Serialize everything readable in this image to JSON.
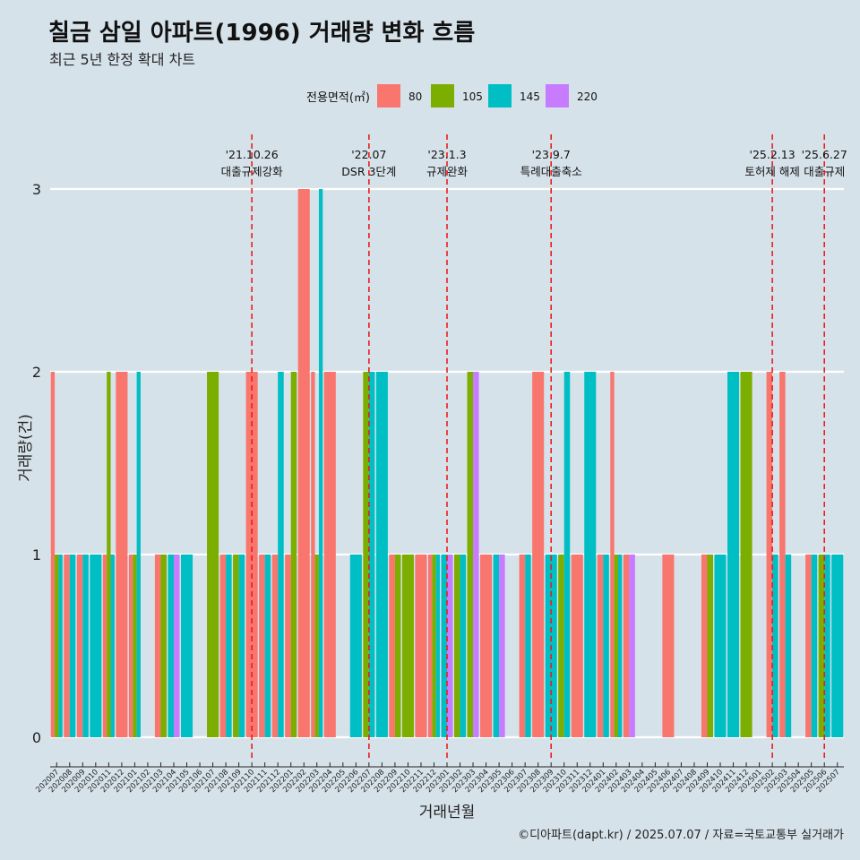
{
  "title": "칠금 삼일 아파트(1996) 거래량 변화 흐름",
  "subtitle": "최근 5년 한정 확대 차트",
  "caption": "©디아파트(dapt.kr) / 2025.07.07 / 자료=국토교통부 실거래가",
  "chart_data": {
    "type": "bar",
    "xlabel": "거래년월",
    "ylabel": "거래량(건)",
    "ylim": [
      0,
      3
    ],
    "yticks": [
      0,
      1,
      2,
      3
    ],
    "grid": true,
    "legend": {
      "title": "전용면적(㎡)",
      "position": "top",
      "entries": [
        {
          "name": "80",
          "color": "#F8766D"
        },
        {
          "name": "105",
          "color": "#7CAE00"
        },
        {
          "name": "145",
          "color": "#00BFC4"
        },
        {
          "name": "220",
          "color": "#C77CFF"
        }
      ]
    },
    "categories": [
      "202007",
      "202008",
      "202009",
      "202010",
      "202011",
      "202012",
      "202101",
      "202102",
      "202103",
      "202104",
      "202105",
      "202106",
      "202107",
      "202108",
      "202109",
      "202110",
      "202111",
      "202112",
      "202201",
      "202202",
      "202203",
      "202204",
      "202205",
      "202206",
      "202207",
      "202208",
      "202209",
      "202210",
      "202211",
      "202212",
      "202301",
      "202302",
      "202303",
      "202304",
      "202305",
      "202306",
      "202307",
      "202308",
      "202309",
      "202310",
      "202311",
      "202312",
      "202401",
      "202402",
      "202403",
      "202404",
      "202405",
      "202406",
      "202407",
      "202408",
      "202409",
      "202410",
      "202411",
      "202412",
      "202501",
      "202502",
      "202503",
      "202504",
      "202505",
      "202506",
      "202507"
    ],
    "series": [
      {
        "name": "80",
        "values": [
          2,
          1,
          1,
          0,
          1,
          2,
          1,
          0,
          1,
          0,
          0,
          0,
          0,
          1,
          0,
          2,
          1,
          1,
          1,
          3,
          2,
          2,
          0,
          0,
          0,
          0,
          1,
          0,
          1,
          1,
          0,
          0,
          0,
          1,
          0,
          0,
          1,
          2,
          0,
          0,
          1,
          0,
          1,
          2,
          1,
          0,
          0,
          1,
          0,
          0,
          1,
          0,
          0,
          0,
          0,
          2,
          2,
          0,
          1,
          0,
          0
        ]
      },
      {
        "name": "105",
        "values": [
          1,
          0,
          0,
          0,
          2,
          0,
          1,
          0,
          1,
          0,
          0,
          0,
          2,
          0,
          1,
          0,
          0,
          0,
          2,
          0,
          1,
          0,
          0,
          0,
          2,
          0,
          1,
          1,
          0,
          1,
          0,
          1,
          2,
          0,
          0,
          0,
          0,
          0,
          0,
          1,
          0,
          0,
          0,
          1,
          0,
          0,
          0,
          0,
          0,
          0,
          1,
          0,
          0,
          2,
          0,
          0,
          0,
          0,
          0,
          1,
          0
        ]
      },
      {
        "name": "145",
        "values": [
          1,
          1,
          1,
          1,
          1,
          0,
          2,
          0,
          0,
          1,
          1,
          0,
          0,
          1,
          1,
          0,
          1,
          2,
          0,
          0,
          3,
          0,
          0,
          1,
          2,
          2,
          0,
          0,
          0,
          1,
          1,
          1,
          0,
          0,
          1,
          0,
          1,
          0,
          1,
          2,
          0,
          2,
          1,
          1,
          0,
          0,
          0,
          0,
          0,
          0,
          0,
          1,
          2,
          0,
          0,
          1,
          1,
          0,
          1,
          1,
          1
        ]
      },
      {
        "name": "220",
        "values": [
          0,
          0,
          0,
          0,
          0,
          0,
          0,
          0,
          0,
          1,
          0,
          0,
          0,
          0,
          0,
          0,
          0,
          0,
          0,
          0,
          0,
          0,
          0,
          0,
          0,
          0,
          0,
          0,
          0,
          0,
          1,
          0,
          2,
          0,
          1,
          0,
          0,
          0,
          0,
          0,
          0,
          0,
          0,
          0,
          1,
          0,
          0,
          0,
          0,
          0,
          0,
          0,
          0,
          0,
          0,
          0,
          0,
          0,
          0,
          0,
          0
        ]
      }
    ],
    "annotations": [
      {
        "date": "'21.10.26",
        "text": "대출규제강화",
        "category": "202110"
      },
      {
        "date": "'22.07",
        "text": "DSR 3단계",
        "category": "202207"
      },
      {
        "date": "'23.1.3",
        "text": "규제완화",
        "category": "202301"
      },
      {
        "date": "'23.9.7",
        "text": "특례대출축소",
        "category": "202309"
      },
      {
        "date": "'25.2.13",
        "text": "토허제 해제",
        "category": "202502"
      },
      {
        "date": "'25.6.27",
        "text": "대출규제",
        "category": "202506"
      }
    ]
  }
}
